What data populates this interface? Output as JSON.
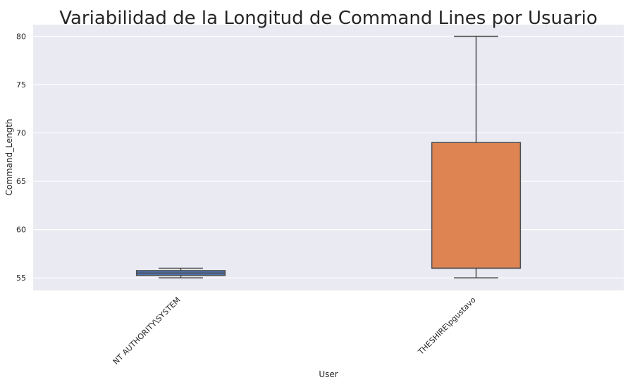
{
  "chart_data": {
    "type": "box",
    "title": "Variabilidad de la Longitud de Command Lines por Usuario",
    "xlabel": "User",
    "ylabel": "Command_Length",
    "ylim": [
      53.7,
      81.2
    ],
    "yticks": [
      55,
      60,
      65,
      70,
      75,
      80
    ],
    "grid": true,
    "categories": [
      "NT AUTHORITY\\SYSTEM",
      "THESHIRE\\pgustavo"
    ],
    "boxes": [
      {
        "category": "NT AUTHORITY\\SYSTEM",
        "whisker_low": 55,
        "q1": 55.25,
        "median": 55.5,
        "q3": 55.75,
        "whisker_high": 56,
        "color": "#4c72b0"
      },
      {
        "category": "THESHIRE\\pgustavo",
        "whisker_low": 55,
        "q1": 56,
        "median": 56,
        "q3": 69,
        "whisker_high": 80,
        "color": "#dd8452"
      }
    ]
  }
}
